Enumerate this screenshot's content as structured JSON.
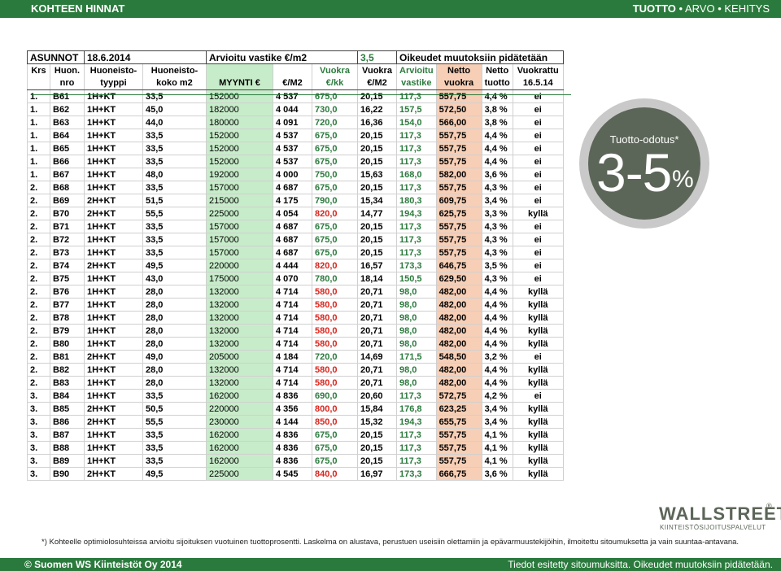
{
  "header": {
    "title": "KOHTEEN HINNAT",
    "nav_bold": "TUOTTO",
    "nav_rest": " • ARVO • KEHITYS"
  },
  "sheet": {
    "title_row": [
      "ASUNNOT",
      "18.6.2014",
      "Arvioitu vastike €/m2",
      "3,5",
      "Oikeudet muutoksiin pidätetään"
    ],
    "header1": [
      "Krs",
      "Huon.",
      "Huoneisto-",
      "Huoneisto-",
      "",
      "",
      "Vuokra",
      "Vuokra",
      "Arvioitu",
      "Netto",
      "Netto",
      "Vuokrattu"
    ],
    "header2": [
      "",
      "nro",
      "tyyppi",
      "koko m2",
      "MYYNTI €",
      "€/M2",
      "€/kk",
      "€/M2",
      "vastike",
      "vuokra",
      "tuotto",
      "16.5.14"
    ],
    "rows": [
      [
        "1.",
        "B61",
        "1H+KT",
        "33,5",
        "152000",
        "4 537",
        "675,0",
        "20,15",
        "117,3",
        "557,75",
        "4,4 %",
        "ei"
      ],
      [
        "1.",
        "B62",
        "1H+KT",
        "45,0",
        "182000",
        "4 044",
        "730,0",
        "16,22",
        "157,5",
        "572,50",
        "3,8 %",
        "ei"
      ],
      [
        "1.",
        "B63",
        "1H+KT",
        "44,0",
        "180000",
        "4 091",
        "720,0",
        "16,36",
        "154,0",
        "566,00",
        "3,8 %",
        "ei"
      ],
      [
        "1.",
        "B64",
        "1H+KT",
        "33,5",
        "152000",
        "4 537",
        "675,0",
        "20,15",
        "117,3",
        "557,75",
        "4,4 %",
        "ei"
      ],
      [
        "1.",
        "B65",
        "1H+KT",
        "33,5",
        "152000",
        "4 537",
        "675,0",
        "20,15",
        "117,3",
        "557,75",
        "4,4 %",
        "ei"
      ],
      [
        "1.",
        "B66",
        "1H+KT",
        "33,5",
        "152000",
        "4 537",
        "675,0",
        "20,15",
        "117,3",
        "557,75",
        "4,4 %",
        "ei"
      ],
      [
        "1.",
        "B67",
        "1H+KT",
        "48,0",
        "192000",
        "4 000",
        "750,0",
        "15,63",
        "168,0",
        "582,00",
        "3,6 %",
        "ei"
      ],
      [
        "2.",
        "B68",
        "1H+KT",
        "33,5",
        "157000",
        "4 687",
        "675,0",
        "20,15",
        "117,3",
        "557,75",
        "4,3 %",
        "ei"
      ],
      [
        "2.",
        "B69",
        "2H+KT",
        "51,5",
        "215000",
        "4 175",
        "790,0",
        "15,34",
        "180,3",
        "609,75",
        "3,4 %",
        "ei"
      ],
      [
        "2.",
        "B70",
        "2H+KT",
        "55,5",
        "225000",
        "4 054",
        "820,0",
        "14,77",
        "194,3",
        "625,75",
        "3,3 %",
        "kyllä"
      ],
      [
        "2.",
        "B71",
        "1H+KT",
        "33,5",
        "157000",
        "4 687",
        "675,0",
        "20,15",
        "117,3",
        "557,75",
        "4,3 %",
        "ei"
      ],
      [
        "2.",
        "B72",
        "1H+KT",
        "33,5",
        "157000",
        "4 687",
        "675,0",
        "20,15",
        "117,3",
        "557,75",
        "4,3 %",
        "ei"
      ],
      [
        "2.",
        "B73",
        "1H+KT",
        "33,5",
        "157000",
        "4 687",
        "675,0",
        "20,15",
        "117,3",
        "557,75",
        "4,3 %",
        "ei"
      ],
      [
        "2.",
        "B74",
        "2H+KT",
        "49,5",
        "220000",
        "4 444",
        "820,0",
        "16,57",
        "173,3",
        "646,75",
        "3,5 %",
        "ei"
      ],
      [
        "2.",
        "B75",
        "1H+KT",
        "43,0",
        "175000",
        "4 070",
        "780,0",
        "18,14",
        "150,5",
        "629,50",
        "4,3 %",
        "ei"
      ],
      [
        "2.",
        "B76",
        "1H+KT",
        "28,0",
        "132000",
        "4 714",
        "580,0",
        "20,71",
        "98,0",
        "482,00",
        "4,4 %",
        "kyllä"
      ],
      [
        "2.",
        "B77",
        "1H+KT",
        "28,0",
        "132000",
        "4 714",
        "580,0",
        "20,71",
        "98,0",
        "482,00",
        "4,4 %",
        "kyllä"
      ],
      [
        "2.",
        "B78",
        "1H+KT",
        "28,0",
        "132000",
        "4 714",
        "580,0",
        "20,71",
        "98,0",
        "482,00",
        "4,4 %",
        "kyllä"
      ],
      [
        "2.",
        "B79",
        "1H+KT",
        "28,0",
        "132000",
        "4 714",
        "580,0",
        "20,71",
        "98,0",
        "482,00",
        "4,4 %",
        "kyllä"
      ],
      [
        "2.",
        "B80",
        "1H+KT",
        "28,0",
        "132000",
        "4 714",
        "580,0",
        "20,71",
        "98,0",
        "482,00",
        "4,4 %",
        "kyllä"
      ],
      [
        "2.",
        "B81",
        "2H+KT",
        "49,0",
        "205000",
        "4 184",
        "720,0",
        "14,69",
        "171,5",
        "548,50",
        "3,2 %",
        "ei"
      ],
      [
        "2.",
        "B82",
        "1H+KT",
        "28,0",
        "132000",
        "4 714",
        "580,0",
        "20,71",
        "98,0",
        "482,00",
        "4,4 %",
        "kyllä"
      ],
      [
        "2.",
        "B83",
        "1H+KT",
        "28,0",
        "132000",
        "4 714",
        "580,0",
        "20,71",
        "98,0",
        "482,00",
        "4,4 %",
        "kyllä"
      ],
      [
        "3.",
        "B84",
        "1H+KT",
        "33,5",
        "162000",
        "4 836",
        "690,0",
        "20,60",
        "117,3",
        "572,75",
        "4,2 %",
        "ei"
      ],
      [
        "3.",
        "B85",
        "2H+KT",
        "50,5",
        "220000",
        "4 356",
        "800,0",
        "15,84",
        "176,8",
        "623,25",
        "3,4 %",
        "kyllä"
      ],
      [
        "3.",
        "B86",
        "2H+KT",
        "55,5",
        "230000",
        "4 144",
        "850,0",
        "15,32",
        "194,3",
        "655,75",
        "3,4 %",
        "kyllä"
      ],
      [
        "3.",
        "B87",
        "1H+KT",
        "33,5",
        "162000",
        "4 836",
        "675,0",
        "20,15",
        "117,3",
        "557,75",
        "4,1 %",
        "kyllä"
      ],
      [
        "3.",
        "B88",
        "1H+KT",
        "33,5",
        "162000",
        "4 836",
        "675,0",
        "20,15",
        "117,3",
        "557,75",
        "4,1 %",
        "kyllä"
      ],
      [
        "3.",
        "B89",
        "1H+KT",
        "33,5",
        "162000",
        "4 836",
        "675,0",
        "20,15",
        "117,3",
        "557,75",
        "4,1 %",
        "kyllä"
      ],
      [
        "3.",
        "B90",
        "2H+KT",
        "49,5",
        "225000",
        "4 545",
        "840,0",
        "16,97",
        "173,3",
        "666,75",
        "3,6 %",
        "kyllä"
      ]
    ],
    "red_rents": [
      "820,0",
      "580,0",
      "800,0",
      "850,0",
      "840,0"
    ],
    "colors": {
      "rent_green": "#2b7a3d",
      "rent_red": "#d9241c",
      "sales_bg": "#c7ecc9",
      "net_bg": "#f7cfb6"
    }
  },
  "badge": {
    "label": "Tuotto-odotus*",
    "value": "3-5",
    "unit": "%"
  },
  "footnote": "*) Kohteelle optimiolosuhteissa arvioitu sijoituksen vuotuinen tuottoprosentti. Laskelma on alustava, perustuen useisiin olettamiin ja epävarmuustekijöihin, ilmoitettu sitoumuksetta ja vain suuntaa-antavana.",
  "logo": {
    "name": "WALLSTREET",
    "reg": "®",
    "sub": "KIINTEISTÖSIJOITUSPALVELUT"
  },
  "footer": {
    "copyright": "© Suomen WS Kiinteistöt Oy 2014",
    "disclaimer": "Tiedot esitetty sitoumuksitta. Oikeudet muutoksiin pidätetään."
  }
}
